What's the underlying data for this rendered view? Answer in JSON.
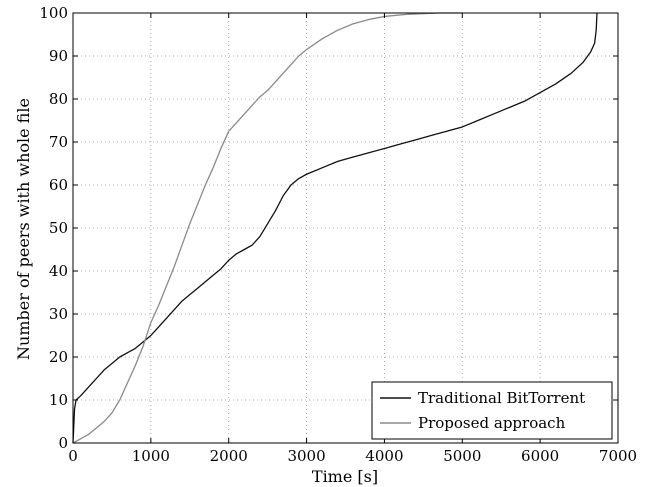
{
  "chart_data": {
    "type": "line",
    "title": "",
    "xlabel": "Time [s]",
    "ylabel": "Number of peers with whole file",
    "xlim": [
      0,
      7000
    ],
    "ylim": [
      0,
      100
    ],
    "xticks": [
      0,
      1000,
      2000,
      3000,
      4000,
      5000,
      6000,
      7000
    ],
    "yticks": [
      0,
      10,
      20,
      30,
      40,
      50,
      60,
      70,
      80,
      90,
      100
    ],
    "grid": true,
    "legend_position": "bottom-right",
    "series": [
      {
        "name": "Traditional BitTorrent",
        "color": "#111111",
        "points": [
          [
            0,
            0
          ],
          [
            20,
            8
          ],
          [
            40,
            10
          ],
          [
            100,
            11
          ],
          [
            200,
            13
          ],
          [
            300,
            15
          ],
          [
            400,
            17
          ],
          [
            500,
            18.5
          ],
          [
            600,
            20
          ],
          [
            700,
            21
          ],
          [
            800,
            22
          ],
          [
            900,
            23.5
          ],
          [
            1000,
            25
          ],
          [
            1100,
            27
          ],
          [
            1200,
            29
          ],
          [
            1300,
            31
          ],
          [
            1400,
            33
          ],
          [
            1500,
            34.5
          ],
          [
            1600,
            36
          ],
          [
            1700,
            37.5
          ],
          [
            1800,
            39
          ],
          [
            1900,
            40.5
          ],
          [
            2000,
            42.5
          ],
          [
            2100,
            44
          ],
          [
            2200,
            45
          ],
          [
            2300,
            46
          ],
          [
            2400,
            48
          ],
          [
            2500,
            51
          ],
          [
            2600,
            54
          ],
          [
            2700,
            57.5
          ],
          [
            2800,
            60
          ],
          [
            2900,
            61.5
          ],
          [
            3000,
            62.5
          ],
          [
            3200,
            64
          ],
          [
            3400,
            65.5
          ],
          [
            3600,
            66.5
          ],
          [
            3800,
            67.5
          ],
          [
            4000,
            68.5
          ],
          [
            4200,
            69.5
          ],
          [
            4400,
            70.5
          ],
          [
            4600,
            71.5
          ],
          [
            4800,
            72.5
          ],
          [
            5000,
            73.5
          ],
          [
            5200,
            75
          ],
          [
            5400,
            76.5
          ],
          [
            5600,
            78
          ],
          [
            5800,
            79.5
          ],
          [
            6000,
            81.5
          ],
          [
            6200,
            83.5
          ],
          [
            6400,
            86
          ],
          [
            6550,
            88.5
          ],
          [
            6650,
            91
          ],
          [
            6700,
            93
          ],
          [
            6720,
            96
          ],
          [
            6730,
            100
          ]
        ]
      },
      {
        "name": "Proposed approach",
        "color": "#8a8a8a",
        "points": [
          [
            0,
            0
          ],
          [
            100,
            1
          ],
          [
            200,
            2
          ],
          [
            300,
            3.5
          ],
          [
            400,
            5
          ],
          [
            500,
            7
          ],
          [
            600,
            10
          ],
          [
            700,
            14
          ],
          [
            800,
            18
          ],
          [
            900,
            22.5
          ],
          [
            1000,
            28
          ],
          [
            1100,
            32
          ],
          [
            1200,
            36.5
          ],
          [
            1300,
            41
          ],
          [
            1400,
            46
          ],
          [
            1500,
            51
          ],
          [
            1600,
            55.5
          ],
          [
            1700,
            60
          ],
          [
            1800,
            64
          ],
          [
            1900,
            68.5
          ],
          [
            2000,
            72.5
          ],
          [
            2100,
            74.5
          ],
          [
            2200,
            76.5
          ],
          [
            2300,
            78.5
          ],
          [
            2400,
            80.5
          ],
          [
            2500,
            82
          ],
          [
            2600,
            84
          ],
          [
            2700,
            86
          ],
          [
            2800,
            88
          ],
          [
            2900,
            90
          ],
          [
            3000,
            91.5
          ],
          [
            3200,
            94
          ],
          [
            3400,
            96
          ],
          [
            3600,
            97.5
          ],
          [
            3800,
            98.5
          ],
          [
            4000,
            99.2
          ],
          [
            4300,
            99.7
          ],
          [
            4700,
            100
          ],
          [
            5000,
            100
          ]
        ]
      }
    ]
  }
}
